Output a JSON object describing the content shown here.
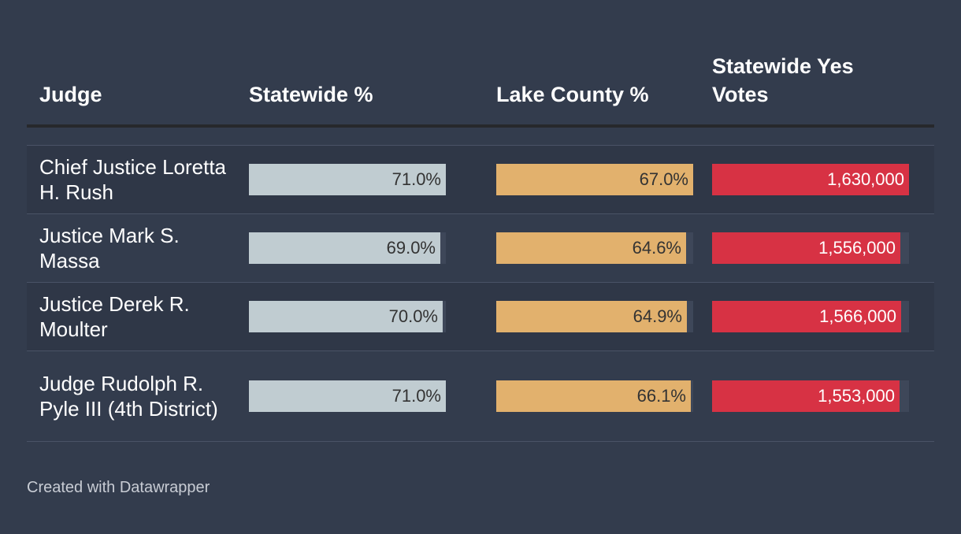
{
  "columns": {
    "judge": "Judge",
    "statewide": "Statewide %",
    "lake": "Lake County %",
    "votes": "Statewide Yes Votes"
  },
  "colors": {
    "statewide": "#c0ccd1",
    "lake": "#e2b16d",
    "votes": "#d73244",
    "statewide_text": "#333333",
    "lake_text": "#333333",
    "votes_text": "#ffffff"
  },
  "chart_data": {
    "type": "table",
    "title": "",
    "columns": [
      "Judge",
      "Statewide %",
      "Lake County %",
      "Statewide Yes Votes"
    ],
    "scales": {
      "statewide": [
        0,
        71.0
      ],
      "lake": [
        0,
        67.0
      ],
      "votes": [
        0,
        1630000
      ]
    },
    "rows": [
      {
        "judge": "Chief Justice Loretta H. Rush",
        "statewide": 71.0,
        "statewide_label": "71.0%",
        "lake": 67.0,
        "lake_label": "67.0%",
        "votes": 1630000,
        "votes_label": "1,630,000"
      },
      {
        "judge": "Justice Mark S. Massa",
        "statewide": 69.0,
        "statewide_label": "69.0%",
        "lake": 64.6,
        "lake_label": "64.6%",
        "votes": 1556000,
        "votes_label": "1,556,000"
      },
      {
        "judge": "Justice Derek R. Moulter",
        "statewide": 70.0,
        "statewide_label": "70.0%",
        "lake": 64.9,
        "lake_label": "64.9%",
        "votes": 1566000,
        "votes_label": "1,566,000"
      },
      {
        "judge": "Judge Rudolph R. Pyle III (4th District)",
        "statewide": 71.0,
        "statewide_label": "71.0%",
        "lake": 66.1,
        "lake_label": "66.1%",
        "votes": 1553000,
        "votes_label": "1,553,000"
      }
    ]
  },
  "footer": "Created with Datawrapper"
}
